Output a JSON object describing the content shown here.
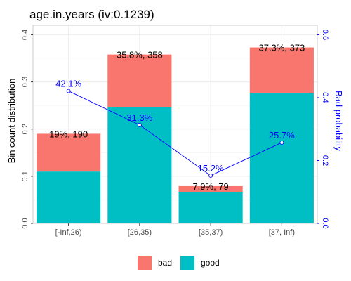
{
  "chart_data": {
    "type": "bar",
    "title": "age.in.years  (iv:0.1239)",
    "ylabel": "Bin count distribution",
    "ylabel_right": "Bad probability",
    "ylim": [
      0,
      0.42
    ],
    "ylim_right": [
      0,
      0.63
    ],
    "yticks": [
      "0.0",
      "0.1",
      "0.2",
      "0.3",
      "0.4"
    ],
    "yticks_values": [
      0.0,
      0.1,
      0.2,
      0.3,
      0.4
    ],
    "yticks_right": [
      "0.0",
      "0.2",
      "0.4",
      "0.6"
    ],
    "yticks_right_values": [
      0.0,
      0.2,
      0.4,
      0.6
    ],
    "categories": [
      "[-Inf,26)",
      "[26,35)",
      "[35,37)",
      "[37, Inf)"
    ],
    "series": [
      {
        "name": "bad",
        "color": "#F8766D",
        "values": [
          0.08,
          0.112,
          0.012,
          0.096
        ]
      },
      {
        "name": "good",
        "color": "#00BFC4",
        "values": [
          0.11,
          0.246,
          0.067,
          0.277
        ]
      }
    ],
    "bar_labels": [
      "19%, 190",
      "35.8%, 358",
      "7.9%, 79",
      "37.3%, 373"
    ],
    "bar_totals": [
      0.19,
      0.358,
      0.079,
      0.373
    ],
    "bad_probability": {
      "values": [
        0.421,
        0.313,
        0.152,
        0.257
      ],
      "labels": [
        "42.1%",
        "31.3%",
        "15.2%",
        "25.7%"
      ],
      "color": "#0000FF"
    },
    "legend": {
      "placement": "bottom",
      "items": [
        "bad",
        "good"
      ]
    },
    "grid": true
  }
}
